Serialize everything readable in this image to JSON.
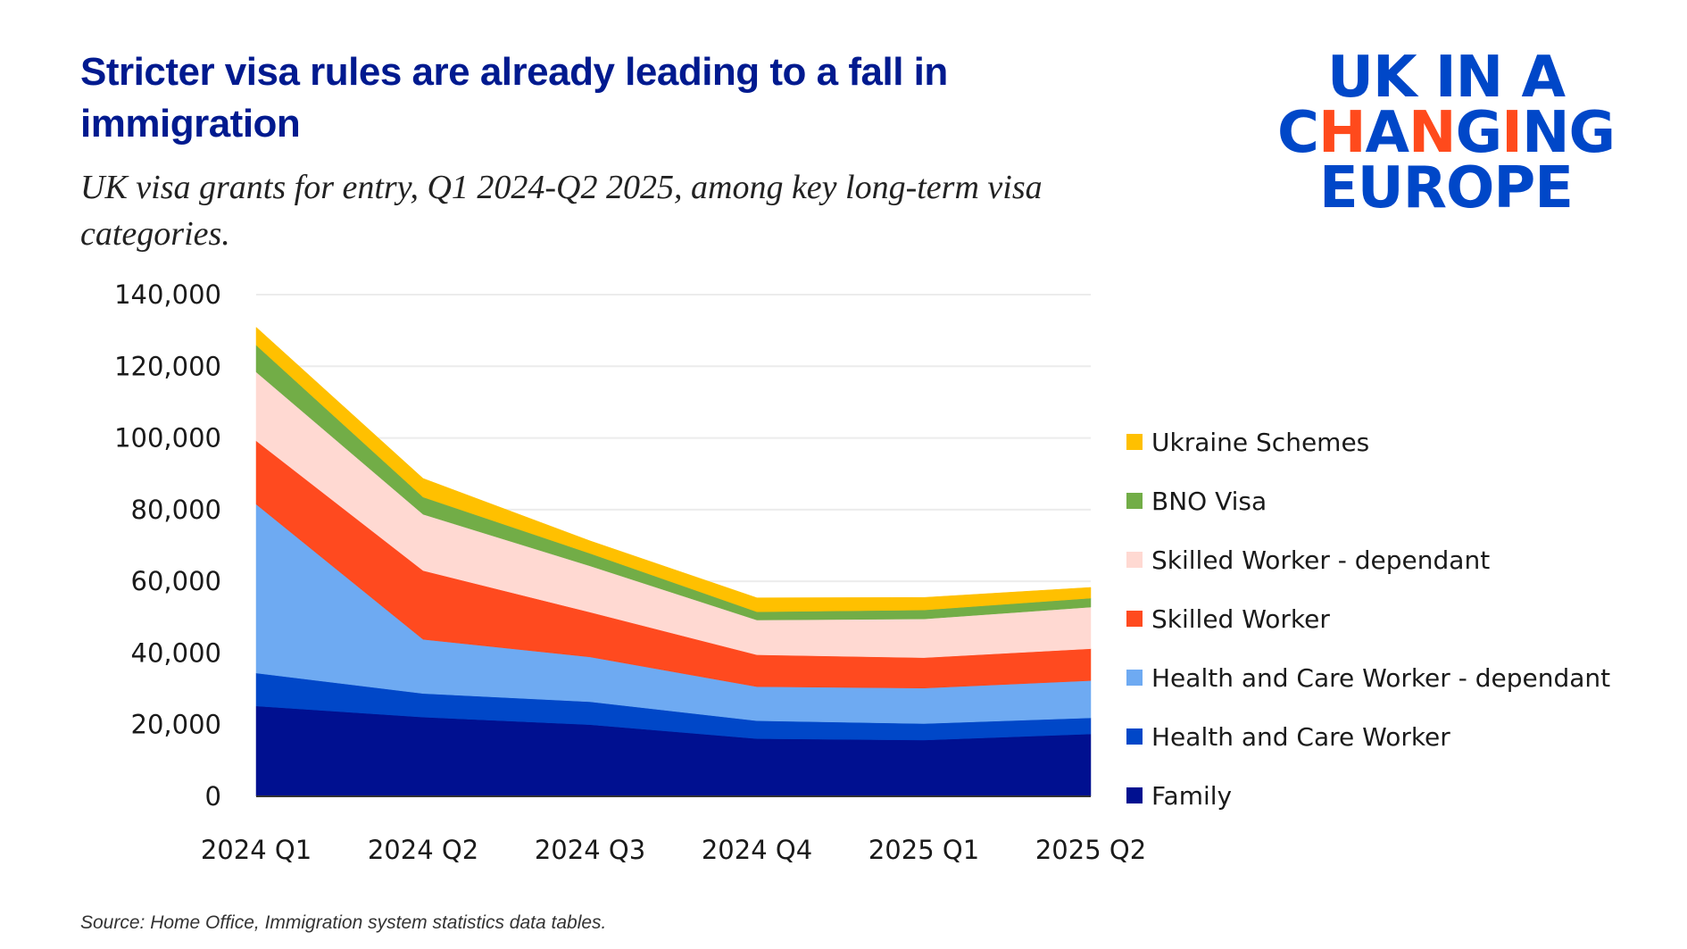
{
  "header": {
    "title": "Stricter visa rules are already leading to a fall in immigration",
    "subtitle": "UK visa grants for entry, Q1 2024-Q2 2025, among key long-term visa categories."
  },
  "logo": {
    "line1": "UK IN A",
    "line2_parts": [
      "C",
      "H",
      "A",
      "N",
      "G",
      "I",
      "NG"
    ],
    "line3": "EUROPE",
    "brand_color": "#0047c8",
    "accent_color": "#ff4a1c"
  },
  "source": "Source: Home Office, Immigration system statistics data tables.",
  "chart_data": {
    "type": "area",
    "stacked": true,
    "title": "Stricter visa rules are already leading to a fall in immigration",
    "subtitle": "UK visa grants for entry, Q1 2024-Q2 2025, among key long-term visa categories.",
    "xlabel": "",
    "ylabel": "",
    "categories": [
      "2024 Q1",
      "2024 Q2",
      "2024 Q3",
      "2024 Q4",
      "2025 Q1",
      "2025 Q2"
    ],
    "ylim": [
      0,
      140000
    ],
    "yticks": [
      0,
      20000,
      40000,
      60000,
      80000,
      100000,
      120000,
      140000
    ],
    "ytick_labels": [
      "0",
      "20,000",
      "40,000",
      "60,000",
      "80,000",
      "100,000",
      "120,000",
      "140,000"
    ],
    "grid": true,
    "legend_position": "right",
    "series": [
      {
        "name": "Family",
        "color": "#001090",
        "values": [
          25200,
          22100,
          20000,
          16100,
          15700,
          17400
        ]
      },
      {
        "name": "Health and Care Worker",
        "color": "#0047c8",
        "values": [
          9200,
          6600,
          6400,
          5000,
          4600,
          4500
        ]
      },
      {
        "name": "Health and Care Worker - dependant",
        "color": "#6eaaf2",
        "values": [
          47100,
          15100,
          12500,
          9500,
          9900,
          10400
        ]
      },
      {
        "name": "Skilled Worker",
        "color": "#ff4a1f",
        "values": [
          17700,
          19200,
          12500,
          8900,
          8500,
          8900
        ]
      },
      {
        "name": "Skilled Worker - dependant",
        "color": "#ffd9d2",
        "values": [
          19200,
          15700,
          12900,
          9700,
          10800,
          11600
        ]
      },
      {
        "name": "BNO Visa",
        "color": "#72ad47",
        "values": [
          7500,
          4800,
          3500,
          2300,
          2500,
          2500
        ]
      },
      {
        "name": "Ukraine Schemes",
        "color": "#ffc000",
        "values": [
          5000,
          5200,
          3500,
          3900,
          3500,
          3000
        ]
      }
    ],
    "legend_order": [
      "Ukraine Schemes",
      "BNO Visa",
      "Skilled Worker - dependant",
      "Skilled Worker",
      "Health and Care Worker - dependant",
      "Health and Care Worker",
      "Family"
    ]
  }
}
